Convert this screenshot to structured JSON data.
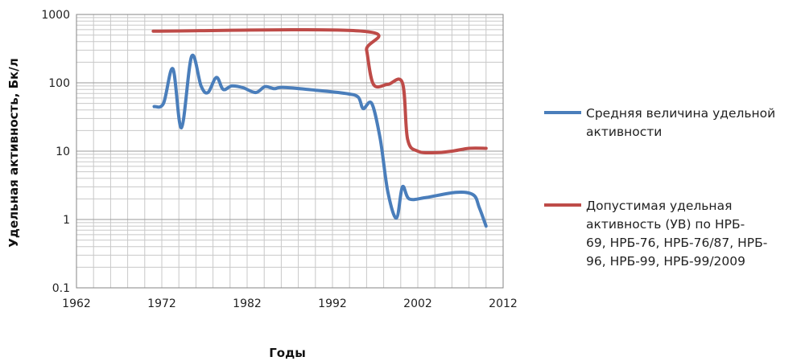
{
  "chart_data": {
    "type": "line",
    "title": "",
    "xlabel": "Годы",
    "ylabel": "Удельная активность, Бк/л",
    "xlim": [
      1962,
      2012
    ],
    "ylim": [
      0.1,
      1000
    ],
    "yscale": "log",
    "grid": true,
    "legend_position": "right",
    "x_ticks": [
      "1962",
      "1972",
      "1982",
      "1992",
      "2002",
      "2012"
    ],
    "y_ticks": [
      "0.1",
      "1",
      "10",
      "100",
      "1000"
    ],
    "series": [
      {
        "name": "Средняя величина удельной активности",
        "legend_lines": [
          "Средняя величина удельной",
          "активности"
        ],
        "color": "#4A7EBB",
        "points": [
          [
            1971.1,
            45
          ],
          [
            1972.2,
            50
          ],
          [
            1973.3,
            160
          ],
          [
            1974.3,
            22
          ],
          [
            1975.5,
            245
          ],
          [
            1976.6,
            90
          ],
          [
            1977.4,
            72
          ],
          [
            1978.4,
            120
          ],
          [
            1979.2,
            80
          ],
          [
            1980.2,
            90
          ],
          [
            1981.5,
            85
          ],
          [
            1983.0,
            72
          ],
          [
            1984.1,
            88
          ],
          [
            1985.2,
            82
          ],
          [
            1986.2,
            86
          ],
          [
            1990.0,
            78
          ],
          [
            1993.5,
            70
          ],
          [
            1995.0,
            62
          ],
          [
            1995.6,
            42
          ],
          [
            1996.6,
            50
          ],
          [
            1997.6,
            15
          ],
          [
            1998.5,
            2.5
          ],
          [
            1999.5,
            1.05
          ],
          [
            2000.2,
            3.0
          ],
          [
            2001.0,
            2.0
          ],
          [
            2003.0,
            2.1
          ],
          [
            2006.5,
            2.5
          ],
          [
            2008.5,
            2.3
          ],
          [
            2009.2,
            1.5
          ],
          [
            2010.0,
            0.8
          ]
        ]
      },
      {
        "name": "Допустимая удельная активность (УВ) по НРБ-69, НРБ-76, НРБ-76/87, НРБ-96, НРБ-99, НРБ-99/2009",
        "legend_lines": [
          "Допустимая удельная",
          "активность (УВ)  по НРБ-",
          "69, НРБ-76, НРБ-76/87, НРБ-",
          "96, НРБ-99, НРБ-99/2009"
        ],
        "color": "#BE4B48",
        "points": [
          [
            1971.0,
            570
          ],
          [
            1995.5,
            570
          ],
          [
            1996.0,
            300
          ],
          [
            1996.8,
            95
          ],
          [
            1998.5,
            95
          ],
          [
            2000.2,
            100
          ],
          [
            2000.8,
            15
          ],
          [
            2002.0,
            10
          ],
          [
            2004.0,
            9.5
          ],
          [
            2006.0,
            10
          ],
          [
            2008.0,
            11
          ],
          [
            2010.0,
            11
          ]
        ]
      }
    ]
  }
}
